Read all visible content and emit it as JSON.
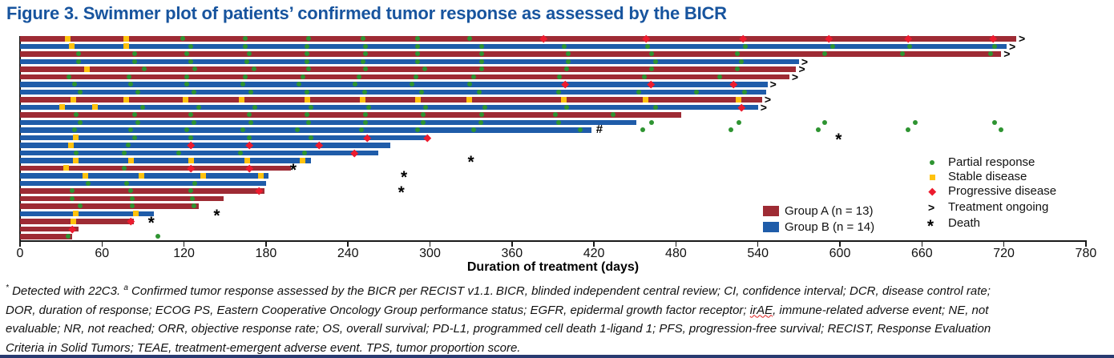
{
  "figure": {
    "title": "Figure 3. Swimmer plot of patients’ confirmed tumor response as assessed by the BICR",
    "title_color": "#17549E",
    "bottom_rule_color": "#283A70"
  },
  "chart_data": {
    "type": "swimmer",
    "xlabel": "Duration of treatment (days)",
    "xlim": [
      0,
      780
    ],
    "x_ticks": [
      0,
      60,
      120,
      180,
      240,
      300,
      360,
      420,
      480,
      540,
      600,
      660,
      720,
      780
    ],
    "grid": false,
    "colors": {
      "group_a": "#9E2B34",
      "group_b": "#1F5CA9",
      "partial_response": "#2E9431",
      "stable_disease": "#FFC20E",
      "progressive_disease": "#EC1B2E",
      "axis": "#1a1a1a"
    },
    "marker_legend": [
      {
        "marker": "pr-circle",
        "label": "Partial response"
      },
      {
        "marker": "sd-square",
        "label": "Stable disease"
      },
      {
        "marker": "pd-diamond",
        "label": "Progressive disease"
      },
      {
        "marker": "ongoing-arrow",
        "glyph": ">",
        "label": "Treatment ongoing"
      },
      {
        "marker": "death-asterisk",
        "glyph": "*",
        "label": "Death"
      }
    ],
    "group_legend": [
      {
        "group": "A",
        "label": "Group A (n = 13)"
      },
      {
        "group": "B",
        "label": "Group B (n = 14)"
      }
    ],
    "patients": [
      {
        "group": "A",
        "end": 729,
        "ongoing": true,
        "death": null,
        "hash": null,
        "markers": [
          [
            "sd",
            35
          ],
          [
            "sd",
            78
          ],
          [
            "pr",
            119
          ],
          [
            "pr",
            165
          ],
          [
            "pr",
            211
          ],
          [
            "pr",
            251
          ],
          [
            "pr",
            291
          ],
          [
            "pr",
            329
          ],
          [
            "pd",
            383
          ],
          [
            "pd",
            458
          ],
          [
            "pd",
            529
          ],
          [
            "pd",
            592
          ],
          [
            "pd",
            650
          ],
          [
            "pd",
            712
          ]
        ],
        "post": []
      },
      {
        "group": "B",
        "end": 722,
        "ongoing": true,
        "death": null,
        "hash": null,
        "markers": [
          [
            "sd",
            38
          ],
          [
            "sd",
            78
          ],
          [
            "pr",
            125
          ],
          [
            "pr",
            165
          ],
          [
            "pr",
            210
          ],
          [
            "pr",
            253
          ],
          [
            "pr",
            291
          ],
          [
            "pr",
            338
          ],
          [
            "pr",
            398
          ],
          [
            "pr",
            459
          ],
          [
            "pr",
            531
          ],
          [
            "pr",
            595
          ],
          [
            "pr",
            651
          ],
          [
            "pr",
            713
          ]
        ],
        "post": []
      },
      {
        "group": "A",
        "end": 718,
        "ongoing": true,
        "death": null,
        "hash": null,
        "markers": [
          [
            "pr",
            43
          ],
          [
            "pr",
            84
          ],
          [
            "pr",
            122
          ],
          [
            "pr",
            168
          ],
          [
            "pr",
            210
          ],
          [
            "pr",
            253
          ],
          [
            "pr",
            291
          ],
          [
            "pr",
            338
          ],
          [
            "pr",
            401
          ],
          [
            "pr",
            462
          ],
          [
            "pr",
            525
          ],
          [
            "pr",
            589
          ],
          [
            "pr",
            646
          ],
          [
            "pr",
            710
          ]
        ],
        "post": []
      },
      {
        "group": "B",
        "end": 570,
        "ongoing": true,
        "death": null,
        "hash": null,
        "markers": [
          [
            "pr",
            43
          ],
          [
            "pr",
            84
          ],
          [
            "pr",
            125
          ],
          [
            "pr",
            166
          ],
          [
            "pr",
            210
          ],
          [
            "pr",
            251
          ],
          [
            "pr",
            291
          ],
          [
            "pr",
            338
          ],
          [
            "pr",
            401
          ],
          [
            "pr",
            465
          ],
          [
            "pr",
            528
          ]
        ],
        "post": []
      },
      {
        "group": "A",
        "end": 568,
        "ongoing": true,
        "death": null,
        "hash": null,
        "markers": [
          [
            "sd",
            49
          ],
          [
            "pr",
            91
          ],
          [
            "pr",
            128
          ],
          [
            "pr",
            171
          ],
          [
            "pr",
            211
          ],
          [
            "pr",
            253
          ],
          [
            "pr",
            296
          ],
          [
            "pr",
            338
          ],
          [
            "pr",
            400
          ],
          [
            "pr",
            462
          ],
          [
            "pr",
            525
          ]
        ],
        "post": []
      },
      {
        "group": "A",
        "end": 563,
        "ongoing": true,
        "death": null,
        "hash": null,
        "markers": [
          [
            "pr",
            36
          ],
          [
            "pr",
            80
          ],
          [
            "pr",
            122
          ],
          [
            "pr",
            165
          ],
          [
            "pr",
            207
          ],
          [
            "pr",
            248
          ],
          [
            "pr",
            290
          ],
          [
            "pr",
            332
          ],
          [
            "pr",
            395
          ],
          [
            "pr",
            457
          ],
          [
            "pr",
            512
          ]
        ],
        "post": []
      },
      {
        "group": "B",
        "end": 547,
        "ongoing": true,
        "death": null,
        "hash": null,
        "markers": [
          [
            "pr",
            40
          ],
          [
            "pr",
            81
          ],
          [
            "pr",
            122
          ],
          [
            "pr",
            163
          ],
          [
            "pr",
            204
          ],
          [
            "pr",
            245
          ],
          [
            "pr",
            287
          ],
          [
            "pr",
            329
          ],
          [
            "pd",
            399
          ],
          [
            "pd",
            462
          ],
          [
            "pd",
            522
          ]
        ],
        "post": []
      },
      {
        "group": "B",
        "end": 546,
        "ongoing": false,
        "death": null,
        "hash": null,
        "markers": [
          [
            "pr",
            44
          ],
          [
            "pr",
            86
          ],
          [
            "pr",
            127
          ],
          [
            "pr",
            169
          ],
          [
            "pr",
            210
          ],
          [
            "pr",
            252
          ],
          [
            "pr",
            294
          ],
          [
            "pr",
            336
          ],
          [
            "pr",
            394
          ],
          [
            "pr",
            453
          ],
          [
            "pr",
            495
          ],
          [
            "pr",
            530
          ]
        ],
        "post": []
      },
      {
        "group": "A",
        "end": 543,
        "ongoing": true,
        "death": null,
        "hash": null,
        "markers": [
          [
            "sd",
            39
          ],
          [
            "sd",
            78
          ],
          [
            "sd",
            121
          ],
          [
            "sd",
            162
          ],
          [
            "sd",
            210
          ],
          [
            "sd",
            251
          ],
          [
            "sd",
            291
          ],
          [
            "sd",
            329
          ],
          [
            "sd",
            398
          ],
          [
            "sd",
            458
          ],
          [
            "sd",
            526
          ]
        ],
        "post": []
      },
      {
        "group": "B",
        "end": 540,
        "ongoing": true,
        "death": null,
        "hash": null,
        "markers": [
          [
            "sd",
            31
          ],
          [
            "sd",
            55
          ],
          [
            "pr",
            90
          ],
          [
            "pr",
            131
          ],
          [
            "pr",
            172
          ],
          [
            "pr",
            213
          ],
          [
            "pr",
            255
          ],
          [
            "pr",
            297
          ],
          [
            "pr",
            340
          ],
          [
            "pr",
            400
          ],
          [
            "pr",
            465
          ],
          [
            "pd",
            528
          ]
        ],
        "post": []
      },
      {
        "group": "A",
        "end": 484,
        "ongoing": false,
        "death": null,
        "hash": null,
        "markers": [
          [
            "pr",
            41
          ],
          [
            "pr",
            84
          ],
          [
            "pr",
            125
          ],
          [
            "pr",
            168
          ],
          [
            "pr",
            210
          ],
          [
            "pr",
            253
          ],
          [
            "pr",
            295
          ],
          [
            "pr",
            338
          ],
          [
            "pr",
            392
          ],
          [
            "pr",
            434
          ]
        ],
        "post": []
      },
      {
        "group": "B",
        "end": 451,
        "ongoing": false,
        "death": null,
        "hash": null,
        "markers": [
          [
            "pr",
            44
          ],
          [
            "pr",
            86
          ],
          [
            "pr",
            127
          ],
          [
            "pr",
            169
          ],
          [
            "pr",
            211
          ],
          [
            "pr",
            253
          ],
          [
            "pr",
            295
          ],
          [
            "pr",
            337
          ],
          [
            "pr",
            394
          ]
        ],
        "post": [
          462,
          526,
          589,
          655,
          713
        ]
      },
      {
        "group": "B",
        "end": 418,
        "ongoing": false,
        "death": null,
        "hash": 424,
        "markers": [
          [
            "pr",
            40
          ],
          [
            "pr",
            81
          ],
          [
            "pr",
            122
          ],
          [
            "pr",
            163
          ],
          [
            "pr",
            203
          ],
          [
            "pr",
            250
          ],
          [
            "pr",
            291
          ],
          [
            "pr",
            332
          ],
          [
            "pr",
            410
          ]
        ],
        "post": [
          456,
          520,
          584,
          650,
          718
        ]
      },
      {
        "group": "B",
        "end": 299,
        "ongoing": false,
        "death": 599,
        "hash": null,
        "markers": [
          [
            "sd",
            41
          ],
          [
            "pr",
            84
          ],
          [
            "pr",
            125
          ],
          [
            "pr",
            168
          ],
          [
            "pr",
            213
          ],
          [
            "pd",
            254
          ],
          [
            "pd",
            298
          ]
        ],
        "post": []
      },
      {
        "group": "B",
        "end": 271,
        "ongoing": false,
        "death": null,
        "hash": null,
        "markers": [
          [
            "sd",
            37
          ],
          [
            "pr",
            79
          ],
          [
            "pd",
            125
          ],
          [
            "pd",
            168
          ],
          [
            "pd",
            219
          ]
        ],
        "post": []
      },
      {
        "group": "B",
        "end": 262,
        "ongoing": false,
        "death": null,
        "hash": null,
        "markers": [
          [
            "pr",
            41
          ],
          [
            "pr",
            76
          ],
          [
            "pr",
            116
          ],
          [
            "pr",
            161
          ],
          [
            "pr",
            208
          ],
          [
            "pd",
            245
          ]
        ],
        "post": []
      },
      {
        "group": "B",
        "end": 213,
        "ongoing": false,
        "death": 330,
        "hash": null,
        "markers": [
          [
            "sd",
            41
          ],
          [
            "sd",
            81
          ],
          [
            "sd",
            125
          ],
          [
            "sd",
            166
          ],
          [
            "sd",
            207
          ]
        ],
        "post": []
      },
      {
        "group": "A",
        "end": 198,
        "ongoing": false,
        "death": 200,
        "hash": null,
        "markers": [
          [
            "sd",
            34
          ],
          [
            "pr",
            76
          ],
          [
            "pd",
            125
          ],
          [
            "pd",
            168
          ]
        ],
        "post": []
      },
      {
        "group": "B",
        "end": 182,
        "ongoing": false,
        "death": 281,
        "hash": null,
        "markers": [
          [
            "sd",
            48
          ],
          [
            "sd",
            89
          ],
          [
            "sd",
            134
          ],
          [
            "sd",
            176
          ]
        ],
        "post": []
      },
      {
        "group": "B",
        "end": 180,
        "ongoing": false,
        "death": null,
        "hash": null,
        "markers": [
          [
            "pr",
            50
          ],
          [
            "pr",
            78
          ],
          [
            "pr",
            128
          ]
        ],
        "post": []
      },
      {
        "group": "A",
        "end": 179,
        "ongoing": false,
        "death": 279,
        "hash": null,
        "markers": [
          [
            "pr",
            38
          ],
          [
            "pr",
            81
          ],
          [
            "pr",
            125
          ],
          [
            "pd",
            175
          ]
        ],
        "post": []
      },
      {
        "group": "A",
        "end": 149,
        "ongoing": false,
        "death": null,
        "hash": null,
        "markers": [
          [
            "pr",
            38
          ],
          [
            "pr",
            82
          ],
          [
            "pr",
            126
          ]
        ],
        "post": []
      },
      {
        "group": "A",
        "end": 131,
        "ongoing": false,
        "death": null,
        "hash": null,
        "markers": [
          [
            "pr",
            44
          ],
          [
            "pr",
            82
          ],
          [
            "pr",
            127
          ]
        ],
        "post": []
      },
      {
        "group": "B",
        "end": 98,
        "ongoing": false,
        "death": 144,
        "hash": null,
        "markers": [
          [
            "sd",
            41
          ],
          [
            "sd",
            85
          ]
        ],
        "post": []
      },
      {
        "group": "A",
        "end": 83,
        "ongoing": false,
        "death": 96,
        "hash": null,
        "markers": [
          [
            "sd",
            39
          ],
          [
            "pd",
            81
          ]
        ],
        "post": []
      },
      {
        "group": "A",
        "end": 43,
        "ongoing": false,
        "death": null,
        "hash": null,
        "markers": [
          [
            "pd",
            38
          ]
        ],
        "post": []
      },
      {
        "group": "A",
        "end": 38,
        "ongoing": false,
        "death": null,
        "hash": null,
        "markers": [
          [
            "pr",
            35
          ]
        ],
        "post": [
          101
        ]
      }
    ]
  },
  "footnote": {
    "lines": [
      [
        {
          "t": "*",
          "s": "sup"
        },
        {
          "t": " Detected with 22C3. ",
          "s": ""
        },
        {
          "t": "a",
          "s": "sup"
        },
        {
          "t": " Confirmed tumor response assessed by the BICR per RECIST v1.1. BICR, blinded independent central review; CI, confidence interval; DCR, disease control rate;",
          "s": ""
        }
      ],
      [
        {
          "t": "DOR, duration of response; ECOG PS, Eastern Cooperative Oncology Group performance status; EGFR, epidermal growth factor receptor; ",
          "s": ""
        },
        {
          "t": "irAE",
          "s": "wavy"
        },
        {
          "t": ", immune-related adverse event; NE, not",
          "s": ""
        }
      ],
      [
        {
          "t": "evaluable; NR, not reached; ORR, objective response rate; OS, overall survival; PD-L1, programmed cell death 1-ligand 1; PFS, progression-free survival; RECIST, Response Evaluation",
          "s": ""
        }
      ],
      [
        {
          "t": "Criteria in Solid Tumors; TEAE, treatment-emergent adverse event. TPS, tumor proportion score.",
          "s": ""
        }
      ]
    ]
  }
}
